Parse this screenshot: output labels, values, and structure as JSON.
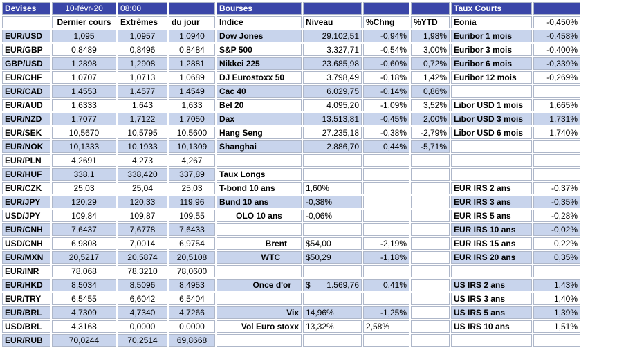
{
  "header": {
    "devises": "Devises",
    "date": "10-févr-20",
    "time": "08:00",
    "bourses": "Bourses",
    "taux_courts": "Taux Courts"
  },
  "columns": {
    "dernier": "Dernier cours",
    "extremes": "Extrêmes",
    "du_jour": "du jour",
    "indice": "Indice",
    "niveau": "Niveau",
    "chng": "%Chng",
    "ytd": "%YTD"
  },
  "fx": [
    {
      "pair": "EUR/USD",
      "last": "1,095",
      "ext": "1,0957",
      "day": "1,0940"
    },
    {
      "pair": "EUR/GBP",
      "last": "0,8489",
      "ext": "0,8496",
      "day": "0,8484"
    },
    {
      "pair": "GBP/USD",
      "last": "1,2898",
      "ext": "1,2908",
      "day": "1,2881"
    },
    {
      "pair": "EUR/CHF",
      "last": "1,0707",
      "ext": "1,0713",
      "day": "1,0689"
    },
    {
      "pair": "EUR/CAD",
      "last": "1,4553",
      "ext": "1,4577",
      "day": "1,4549"
    },
    {
      "pair": "EUR/AUD",
      "last": "1,6333",
      "ext": "1,643",
      "day": "1,633"
    },
    {
      "pair": "EUR/NZD",
      "last": "1,7077",
      "ext": "1,7122",
      "day": "1,7050"
    },
    {
      "pair": "EUR/SEK",
      "last": "10,5670",
      "ext": "10,5795",
      "day": "10,5600"
    },
    {
      "pair": "EUR/NOK",
      "last": "10,1333",
      "ext": "10,1933",
      "day": "10,1309"
    },
    {
      "pair": "EUR/PLN",
      "last": "4,2691",
      "ext": "4,273",
      "day": "4,267"
    },
    {
      "pair": "EUR/HUF",
      "last": "338,1",
      "ext": "338,420",
      "day": "337,89"
    },
    {
      "pair": "EUR/CZK",
      "last": "25,03",
      "ext": "25,04",
      "day": "25,03"
    },
    {
      "pair": "EUR/JPY",
      "last": "120,29",
      "ext": "120,33",
      "day": "119,96"
    },
    {
      "pair": "USD/JPY",
      "last": "109,84",
      "ext": "109,87",
      "day": "109,55"
    },
    {
      "pair": "EUR/CNH",
      "last": "7,6437",
      "ext": "7,6778",
      "day": "7,6433"
    },
    {
      "pair": "USD/CNH",
      "last": "6,9808",
      "ext": "7,0014",
      "day": "6,9754"
    },
    {
      "pair": "EUR/MXN",
      "last": "20,5217",
      "ext": "20,5874",
      "day": "20,5108"
    },
    {
      "pair": "EUR/INR",
      "last": "78,068",
      "ext": "78,3210",
      "day": "78,0600"
    },
    {
      "pair": "EUR/HKD",
      "last": "8,5034",
      "ext": "8,5096",
      "day": "8,4953"
    },
    {
      "pair": "EUR/TRY",
      "last": "6,5455",
      "ext": "6,6042",
      "day": "6,5404"
    },
    {
      "pair": "EUR/BRL",
      "last": "4,7309",
      "ext": "4,7340",
      "day": "4,7266"
    },
    {
      "pair": "USD/BRL",
      "last": "4,3168",
      "ext": "0,0000",
      "day": "0,0000"
    },
    {
      "pair": "EUR/RUB",
      "last": "70,0244",
      "ext": "70,2514",
      "day": "69,8668"
    }
  ],
  "indices": [
    {
      "name": "Dow Jones",
      "level": "29.102,51",
      "chng": "-0,94%",
      "ytd": "1,98%"
    },
    {
      "name": "S&P 500",
      "level": "3.327,71",
      "chng": "-0,54%",
      "ytd": "3,00%"
    },
    {
      "name": "Nikkei 225",
      "level": "23.685,98",
      "chng": "-0,60%",
      "ytd": "0,72%"
    },
    {
      "name": "DJ Eurostoxx 50",
      "level": "3.798,49",
      "chng": "-0,18%",
      "ytd": "1,42%"
    },
    {
      "name": "Cac 40",
      "level": "6.029,75",
      "chng": "-0,14%",
      "ytd": "0,86%"
    },
    {
      "name": "Bel 20",
      "level": "4.095,20",
      "chng": "-1,09%",
      "ytd": "3,52%"
    },
    {
      "name": "Dax",
      "level": "13.513,81",
      "chng": "-0,45%",
      "ytd": "2,00%"
    },
    {
      "name": "Hang Seng",
      "level": "27.235,18",
      "chng": "-0,38%",
      "ytd": "-2,79%"
    },
    {
      "name": "Shanghai",
      "level": "2.886,70",
      "chng": "0,44%",
      "ytd": "-5,71%"
    }
  ],
  "taux_longs": {
    "title": "Taux Longs",
    "rows": [
      {
        "name": "T-bond 10 ans",
        "level": "1,60%"
      },
      {
        "name": "Bund 10 ans",
        "level": "-0,38%"
      },
      {
        "name": "OLO 10 ans",
        "level": "-0,06%"
      }
    ]
  },
  "commodities": [
    {
      "name": "Brent",
      "level": "$54,00",
      "chng": "-2,19%"
    },
    {
      "name": "WTC",
      "level": "$50,29",
      "chng": "-1,18%"
    }
  ],
  "gold": {
    "name": "Once d'or",
    "currency": "$",
    "level": "1.569,76",
    "chng": "0,41%"
  },
  "volatility": [
    {
      "name": "Vix",
      "level": "14,96%",
      "chng": "-1,25%"
    },
    {
      "name": "Vol Euro stoxx",
      "level": "13,32%",
      "chng": "2,58%"
    }
  ],
  "short_rates": [
    {
      "name": "Eonia",
      "value": "-0,450%"
    },
    {
      "name": "Euribor 1 mois",
      "value": "-0,458%"
    },
    {
      "name": "Euribor 3 mois",
      "value": "-0,400%"
    },
    {
      "name": "Euribor 6 mois",
      "value": "-0,339%"
    },
    {
      "name": "Euribor 12 mois",
      "value": "-0,269%"
    },
    {
      "name": "Libor USD 1 mois",
      "value": "1,665%"
    },
    {
      "name": "Libor USD 3 mois",
      "value": "1,731%"
    },
    {
      "name": "Libor USD 6 mois",
      "value": "1,740%"
    }
  ],
  "eur_irs": [
    {
      "name": "EUR IRS 2 ans",
      "value": "-0,37%"
    },
    {
      "name": "EUR IRS 3 ans",
      "value": "-0,35%"
    },
    {
      "name": "EUR IRS 5 ans",
      "value": "-0,28%"
    },
    {
      "name": "EUR IRS 10 ans",
      "value": "-0,02%"
    },
    {
      "name": "EUR IRS 15 ans",
      "value": "0,22%"
    },
    {
      "name": "EUR IRS 20 ans",
      "value": "0,35%"
    }
  ],
  "us_irs": [
    {
      "name": "US IRS 2 ans",
      "value": "1,43%"
    },
    {
      "name": "US IRS 3 ans",
      "value": "1,40%"
    },
    {
      "name": "US IRS 5 ans",
      "value": "1,39%"
    },
    {
      "name": "US IRS 10 ans",
      "value": "1,51%"
    }
  ]
}
